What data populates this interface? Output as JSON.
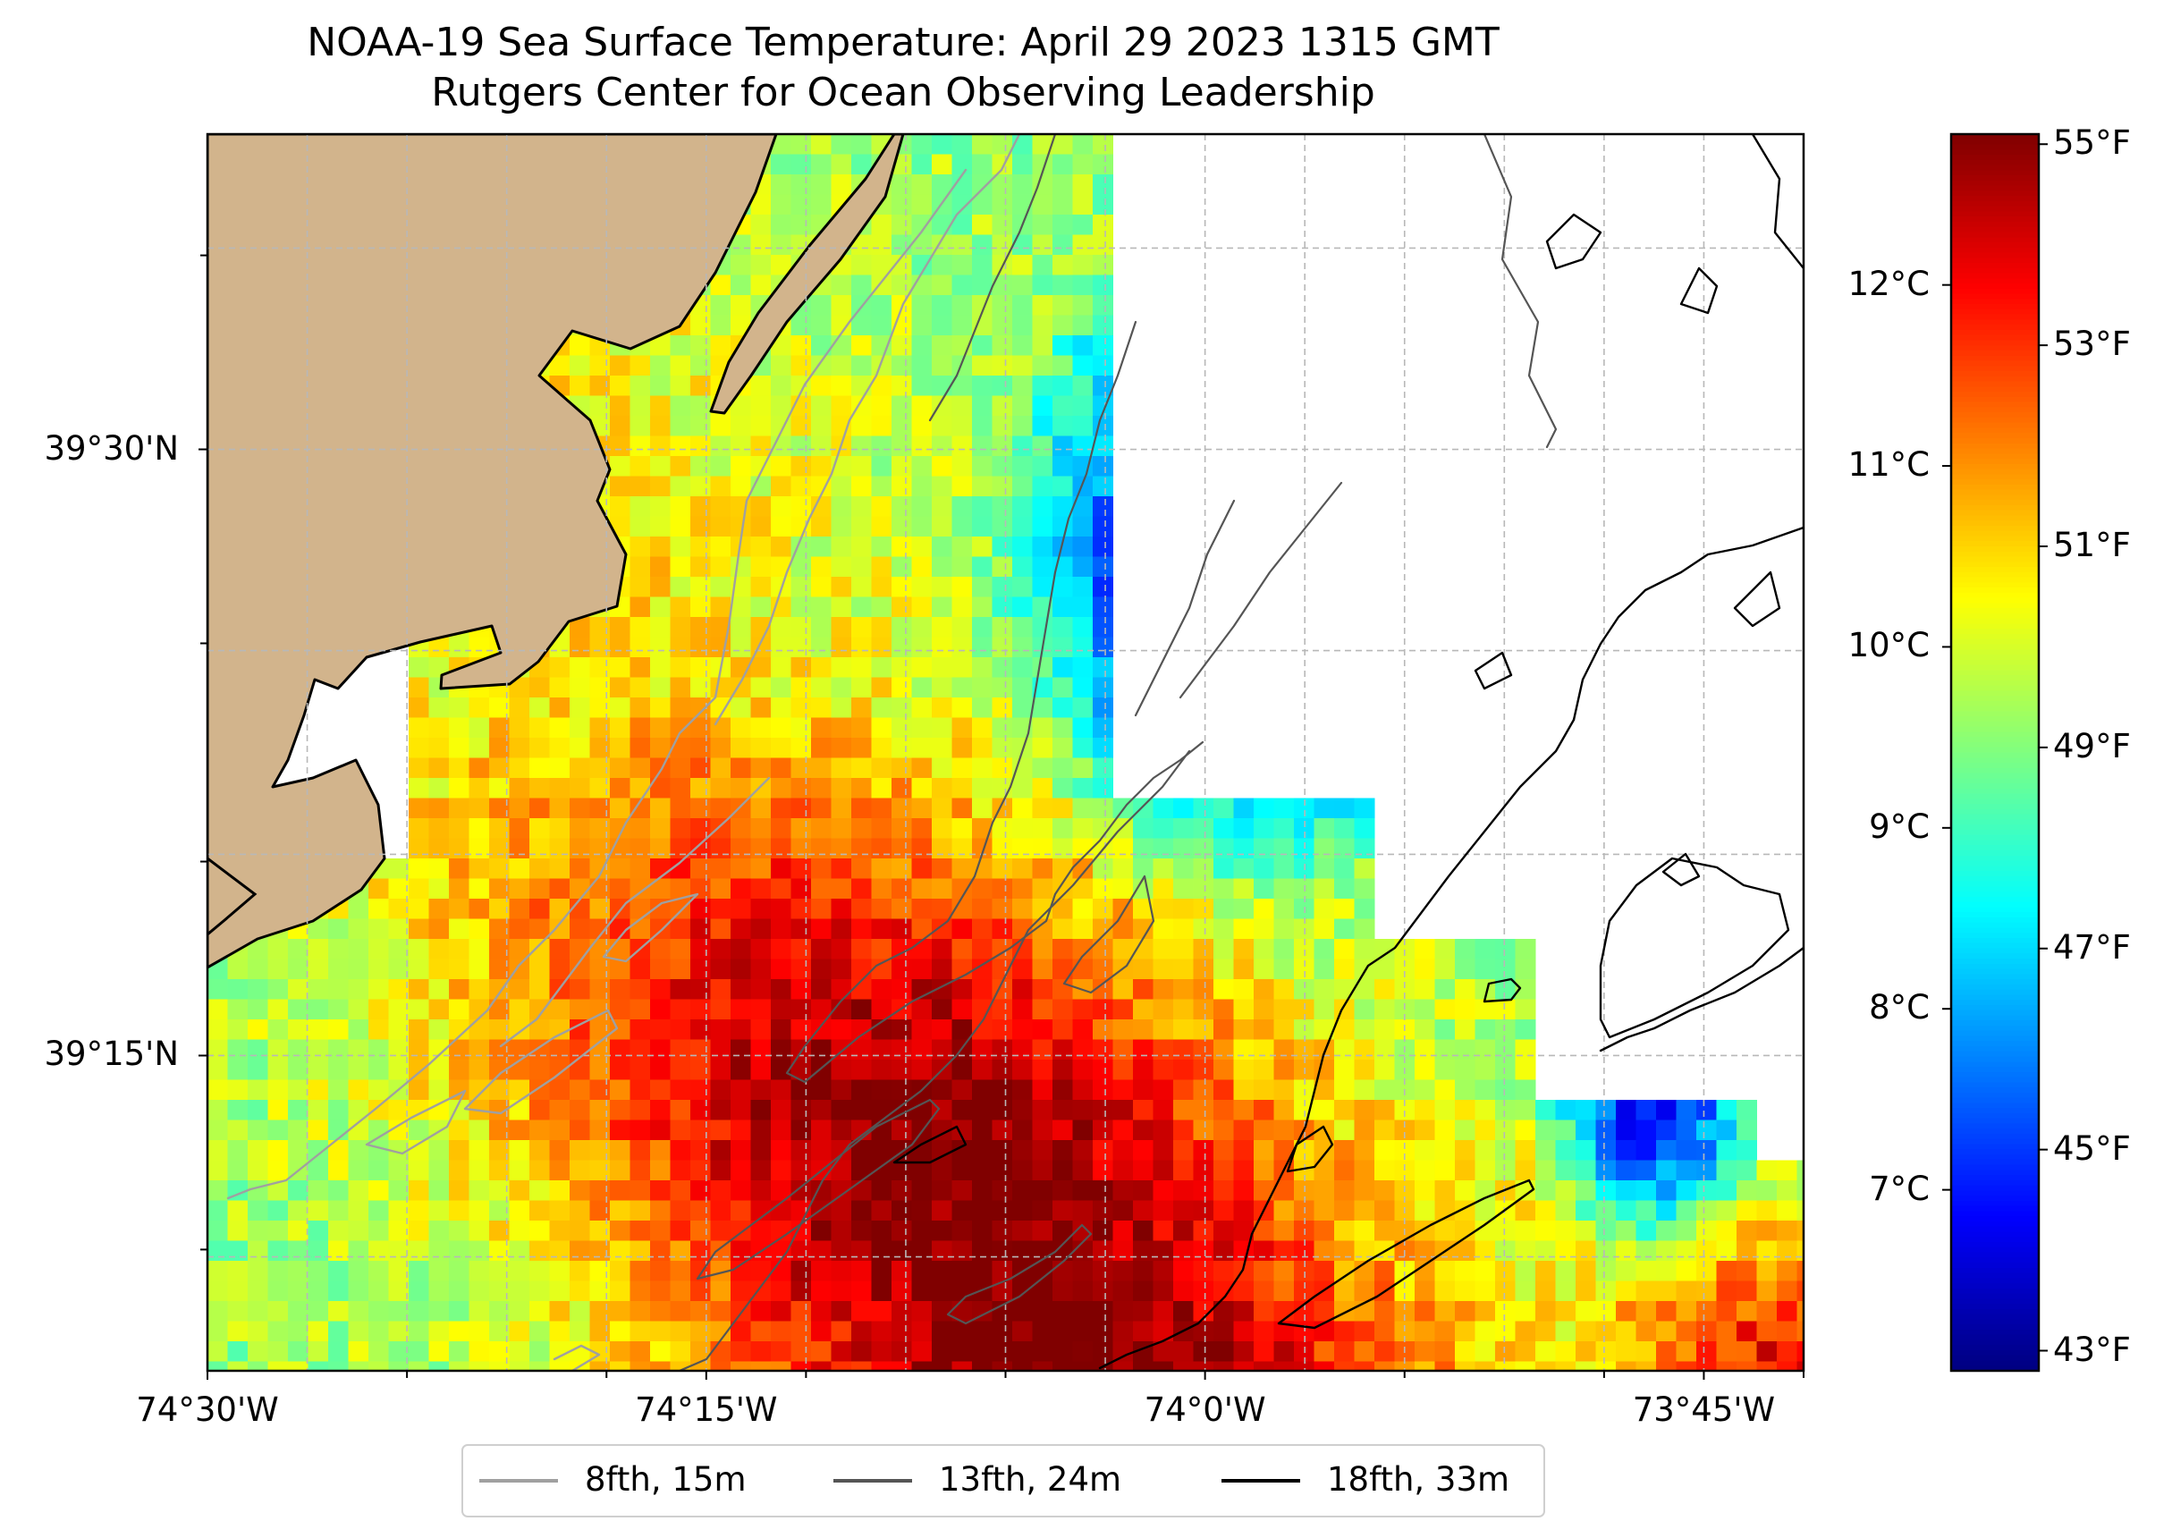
{
  "title": {
    "line1": "NOAA-19 Sea Surface Temperature: April 29 2023 1315 GMT",
    "line2": "Rutgers Center for Ocean Observing Leadership"
  },
  "map": {
    "extent": {
      "lon_min": -74.5,
      "lon_max": -73.7,
      "lat_min": 39.12,
      "lat_max": 39.63
    },
    "grid": true,
    "land_color": "#d2b48c",
    "xticks": [
      {
        "lon": -74.5,
        "label": "74°30'W"
      },
      {
        "lon": -74.25,
        "label": "74°15'W"
      },
      {
        "lon": -74.0,
        "label": "74°0'W"
      },
      {
        "lon": -73.75,
        "label": "73°45'W"
      }
    ],
    "yticks": [
      {
        "lat": 39.5,
        "label": "39°30'N"
      },
      {
        "lat": 39.25,
        "label": "39°15'N"
      }
    ]
  },
  "colorbar": {
    "colormap": "jet",
    "range_f": [
      42.8,
      55.1
    ],
    "fahrenheit_ticks": [
      {
        "value": 55,
        "label": "55°F"
      },
      {
        "value": 53,
        "label": "53°F"
      },
      {
        "value": 51,
        "label": "51°F"
      },
      {
        "value": 49,
        "label": "49°F"
      },
      {
        "value": 47,
        "label": "47°F"
      },
      {
        "value": 45,
        "label": "45°F"
      },
      {
        "value": 43,
        "label": "43°F"
      }
    ],
    "celsius_ticks": [
      {
        "value": 12,
        "label": "12°C"
      },
      {
        "value": 11,
        "label": "11°C"
      },
      {
        "value": 10,
        "label": "10°C"
      },
      {
        "value": 9,
        "label": "9°C"
      },
      {
        "value": 8,
        "label": "8°C"
      },
      {
        "value": 7,
        "label": "7°C"
      }
    ]
  },
  "legend": {
    "placement": "bottom-center",
    "items": [
      {
        "label": "8fth, 15m",
        "color": "#a0a0a0"
      },
      {
        "label": "13fth, 24m",
        "color": "#555555"
      },
      {
        "label": "18fth, 33m",
        "color": "#000000"
      }
    ]
  }
}
